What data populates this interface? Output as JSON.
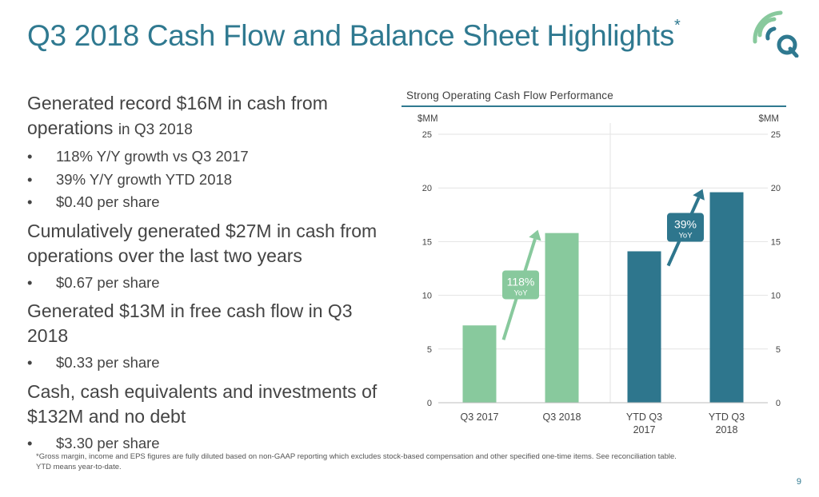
{
  "slide": {
    "title": "Q3 2018 Cash Flow and Balance Sheet Highlights",
    "title_mark": "*",
    "page_number": "9"
  },
  "sections": [
    {
      "heading": "Generated record $16M in cash from operations",
      "heading_suffix": "in Q3 2018",
      "bullets": [
        "118% Y/Y growth vs Q3 2017",
        "39% Y/Y growth YTD 2018",
        "$0.40 per share"
      ]
    },
    {
      "heading": "Cumulatively generated $27M in cash from operations over the last two years",
      "heading_suffix": "",
      "bullets": [
        "$0.67 per share"
      ]
    },
    {
      "heading": "Generated $13M in free cash flow in Q3 2018",
      "heading_suffix": "",
      "bullets": [
        "$0.33 per share"
      ]
    },
    {
      "heading": "Cash, cash equivalents and investments of $132M and no debt",
      "heading_suffix": "",
      "bullets": [
        "$3.30 per share"
      ]
    }
  ],
  "footnote": {
    "line1": "*Gross margin, income and EPS figures are fully diluted based on non-GAAP reporting which excludes stock-based compensation and other specified one-time items. See reconciliation table.",
    "line2": "YTD means year-to-date."
  },
  "colors": {
    "title": "#2f7990",
    "light_bar": "#88c99d",
    "dark_bar": "#2e768d"
  },
  "chart_data": {
    "type": "bar",
    "title": "Strong Operating Cash Flow Performance",
    "ylabel_left": "$MM",
    "ylabel_right": "$MM",
    "ylim": [
      0,
      25
    ],
    "yticks": [
      0,
      5,
      10,
      15,
      20,
      25
    ],
    "categories": [
      [
        "Q3 2017"
      ],
      [
        "Q3 2018"
      ],
      [
        "YTD Q3",
        "2017"
      ],
      [
        "YTD Q3",
        "2018"
      ]
    ],
    "values": [
      7.2,
      15.8,
      14.1,
      19.6
    ],
    "bar_colors": [
      "#88c99d",
      "#88c99d",
      "#2e768d",
      "#2e768d"
    ],
    "annotations": [
      {
        "pct": "118%",
        "label": "YoY",
        "from": 0,
        "to": 1,
        "color": "#88c99d",
        "text_color": "#ffffff"
      },
      {
        "pct": "39%",
        "label": "YoY",
        "from": 2,
        "to": 3,
        "color": "#2e768d",
        "text_color": "#ffffff"
      }
    ]
  }
}
